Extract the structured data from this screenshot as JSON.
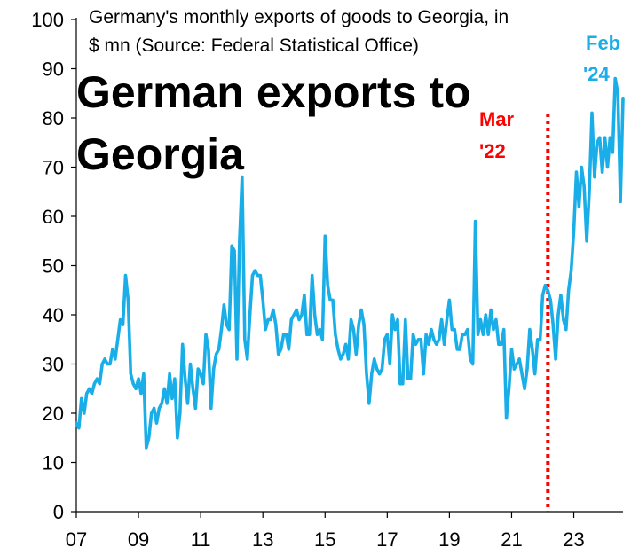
{
  "chart_data": {
    "type": "line",
    "title": "German exports to Georgia",
    "subtitle_line1": "Germany's monthly exports of goods to Georgia, in",
    "subtitle_line2": "$ mn (Source: Federal Statistical Office)",
    "xlabel": "",
    "ylabel": "",
    "ylim": [
      0,
      100
    ],
    "y_ticks": [
      0,
      10,
      20,
      30,
      40,
      50,
      60,
      70,
      80,
      90,
      100
    ],
    "xlim": [
      "2007-01",
      "2024-08"
    ],
    "x_ticks": [
      {
        "date": "2007-01",
        "label": "07"
      },
      {
        "date": "2009-01",
        "label": "09"
      },
      {
        "date": "2011-01",
        "label": "11"
      },
      {
        "date": "2013-01",
        "label": "13"
      },
      {
        "date": "2015-01",
        "label": "15"
      },
      {
        "date": "2017-01",
        "label": "17"
      },
      {
        "date": "2019-01",
        "label": "19"
      },
      {
        "date": "2021-01",
        "label": "21"
      },
      {
        "date": "2023-01",
        "label": "23"
      }
    ],
    "grid": false,
    "series": [
      {
        "color": "#1aaee8",
        "start": "2007-01",
        "frequency": "monthly",
        "values": [
          18,
          17,
          23,
          20,
          24,
          25,
          24,
          26,
          27,
          26,
          30,
          31,
          30,
          30,
          33,
          31,
          35,
          39,
          38,
          48,
          43,
          28,
          26,
          25,
          27,
          24,
          28,
          13,
          15,
          20,
          21,
          18,
          21,
          22,
          25,
          22,
          28,
          23,
          27,
          15,
          20,
          34,
          27,
          22,
          30,
          25,
          21,
          29,
          28,
          26,
          36,
          33,
          21,
          29,
          32,
          33,
          37,
          42,
          38,
          37,
          54,
          53,
          31,
          55,
          68,
          35,
          31,
          40,
          48,
          49,
          48,
          48,
          43,
          37,
          39,
          39,
          41,
          38,
          32,
          33,
          36,
          36,
          33,
          39,
          40,
          41,
          39,
          40,
          44,
          36,
          36,
          48,
          40,
          36,
          37,
          35,
          56,
          46,
          43,
          43,
          36,
          33,
          31,
          32,
          34,
          31,
          39,
          37,
          32,
          38,
          41,
          38,
          28,
          22,
          28,
          31,
          29,
          28,
          29,
          35,
          36,
          30,
          40,
          37,
          39,
          26,
          26,
          39,
          27,
          27,
          36,
          34,
          35,
          35,
          28,
          36,
          34,
          37,
          35,
          34,
          35,
          39,
          34,
          39,
          43,
          37,
          37,
          33,
          33,
          36,
          36,
          37,
          31,
          30,
          59,
          36,
          39,
          36,
          40,
          36,
          41,
          37,
          39,
          34,
          34,
          37,
          19,
          25,
          33,
          29,
          30,
          31,
          28,
          25,
          29,
          37,
          33,
          28,
          35,
          35,
          44,
          46,
          45,
          43,
          38,
          31,
          40,
          44,
          39,
          37,
          45,
          49,
          57,
          69,
          62,
          70,
          66,
          55,
          65,
          81,
          68,
          75,
          76,
          69,
          76,
          70,
          76,
          73,
          88,
          85,
          63,
          84
        ]
      }
    ],
    "annotations": [
      {
        "label_line1": "Mar",
        "label_line2": "'22",
        "date": "2022-03",
        "style": "dotted-vertical-line",
        "color": "#ff0000"
      },
      {
        "label_line1": "Feb",
        "label_line2": "'24",
        "date": "2024-02",
        "color": "#1aaee8"
      }
    ]
  }
}
